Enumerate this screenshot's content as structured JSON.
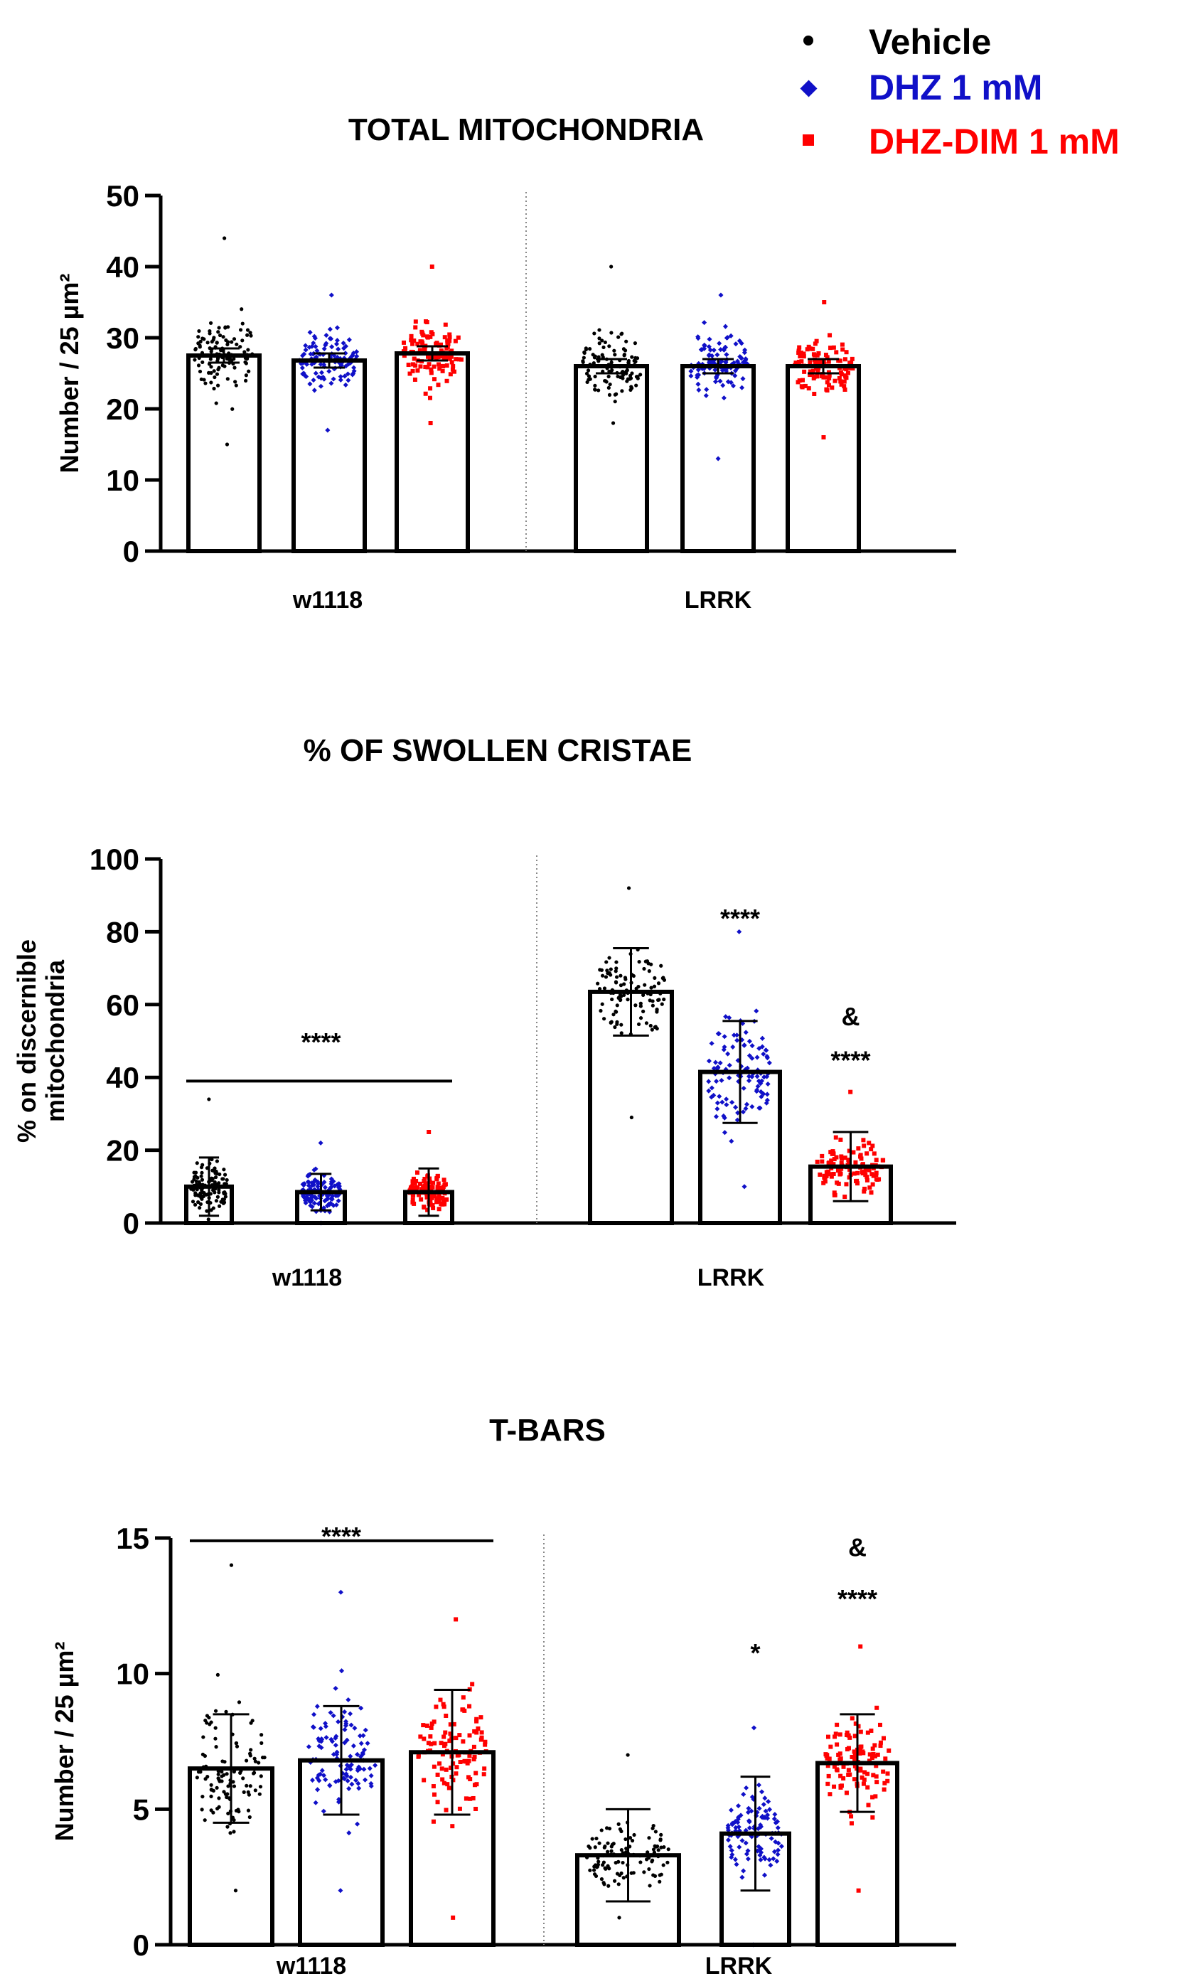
{
  "legend": {
    "entries": [
      {
        "label": "Vehicle",
        "color": "#000000",
        "marker": "circle"
      },
      {
        "label": "DHZ 1 mM",
        "color": "#1010c8",
        "marker": "diamond"
      },
      {
        "label": "DHZ-DIM 1 mM",
        "color": "#ff0000",
        "marker": "square"
      }
    ]
  },
  "chart_data": [
    {
      "type": "bar",
      "title": "TOTAL MITOCHONDRIA",
      "ylabel_lines": [
        "Number / 25 µm²"
      ],
      "ylim": [
        0,
        50
      ],
      "yticks": [
        0,
        10,
        20,
        30,
        40,
        50
      ],
      "groups": [
        "w1118",
        "LRRK"
      ],
      "series": [
        {
          "name": "Vehicle",
          "values": [
            27.5,
            26.0
          ],
          "err": [
            1.0,
            1.0
          ],
          "spread": [
            [
              15,
              44
            ],
            [
              18,
              40
            ]
          ]
        },
        {
          "name": "DHZ 1 mM",
          "values": [
            26.8,
            26.0
          ],
          "err": [
            1.0,
            1.0
          ],
          "spread": [
            [
              17,
              36
            ],
            [
              13,
              36
            ]
          ]
        },
        {
          "name": "DHZ-DIM 1 mM",
          "values": [
            27.8,
            26.0
          ],
          "err": [
            1.0,
            1.0
          ],
          "spread": [
            [
              18,
              40
            ],
            [
              16,
              35
            ]
          ]
        }
      ],
      "annotations": []
    },
    {
      "type": "bar",
      "title": "% OF SWOLLEN CRISTAE",
      "ylabel_lines": [
        "% on discernible",
        "mitochondria"
      ],
      "ylim": [
        0,
        100
      ],
      "yticks": [
        0,
        20,
        40,
        60,
        80,
        100
      ],
      "groups": [
        "w1118",
        "LRRK"
      ],
      "series": [
        {
          "name": "Vehicle",
          "values": [
            10,
            63.5
          ],
          "err": [
            8,
            12
          ],
          "spread": [
            [
              1,
              34
            ],
            [
              29,
              92
            ]
          ]
        },
        {
          "name": "DHZ 1 mM",
          "values": [
            8.5,
            41.5
          ],
          "err": [
            5,
            14
          ],
          "spread": [
            [
              0,
              22
            ],
            [
              10,
              80
            ]
          ]
        },
        {
          "name": "DHZ-DIM 1 mM",
          "values": [
            8.5,
            15.5
          ],
          "err": [
            6.5,
            9.5
          ],
          "spread": [
            [
              0,
              25
            ],
            [
              0,
              36
            ]
          ]
        }
      ],
      "annotations": [
        {
          "text": "****",
          "group": 0,
          "series": 1,
          "y": 50
        },
        {
          "text": "****",
          "group": 1,
          "series": 1,
          "y": 84
        },
        {
          "text": "&",
          "group": 1,
          "series": 2,
          "y": 57
        },
        {
          "text": "****",
          "group": 1,
          "series": 2,
          "y": 45
        }
      ],
      "brackets": [
        {
          "group": 0,
          "y": 39
        }
      ]
    },
    {
      "type": "bar",
      "title": "T-BARS",
      "ylabel_lines": [
        "Number / 25 µm²"
      ],
      "ylim": [
        0,
        15
      ],
      "yticks": [
        0,
        5,
        10,
        15
      ],
      "groups": [
        "w1118",
        "LRRK"
      ],
      "series": [
        {
          "name": "Vehicle",
          "values": [
            6.5,
            3.3
          ],
          "err": [
            2.0,
            1.7
          ],
          "spread": [
            [
              2,
              14
            ],
            [
              1,
              7
            ]
          ]
        },
        {
          "name": "DHZ 1 mM",
          "values": [
            6.8,
            4.1
          ],
          "err": [
            2.0,
            2.1
          ],
          "spread": [
            [
              2,
              13
            ],
            [
              0,
              8
            ]
          ]
        },
        {
          "name": "DHZ-DIM 1 mM",
          "values": [
            7.1,
            6.7
          ],
          "err": [
            2.3,
            1.8
          ],
          "spread": [
            [
              1,
              12
            ],
            [
              2,
              11
            ]
          ]
        }
      ],
      "annotations": [
        {
          "text": "****",
          "group": 0,
          "series": 1,
          "y": 15.1
        },
        {
          "text": "*",
          "group": 1,
          "series": 1,
          "y": 10.8
        },
        {
          "text": "&",
          "group": 1,
          "series": 2,
          "y": 14.7
        },
        {
          "text": "****",
          "group": 1,
          "series": 2,
          "y": 12.8
        }
      ],
      "brackets": [
        {
          "group": 0,
          "y": 14.9
        }
      ]
    }
  ]
}
